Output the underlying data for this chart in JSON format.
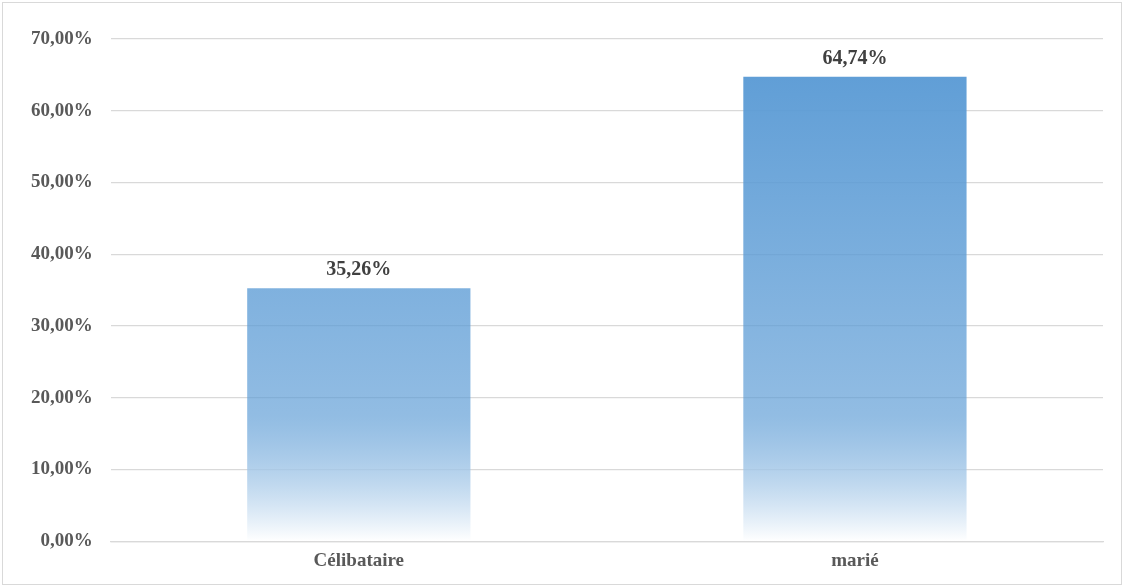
{
  "chart_data": {
    "type": "bar",
    "categories": [
      "Célibataire",
      "marié"
    ],
    "values": [
      35.26,
      64.74
    ],
    "color": "#5b9bd5",
    "value_labels": [
      "35,26%",
      "64,74%"
    ],
    "ylim": [
      0,
      70
    ],
    "yticks": [
      {
        "value": 0,
        "label": "0,00%"
      },
      {
        "value": 10,
        "label": "10,00%"
      },
      {
        "value": 20,
        "label": "20,00%"
      },
      {
        "value": 30,
        "label": "30,00%"
      },
      {
        "value": 40,
        "label": "40,00%"
      },
      {
        "value": 50,
        "label": "50,00%"
      },
      {
        "value": 60,
        "label": "60,00%"
      },
      {
        "value": 70,
        "label": "70,00%"
      }
    ],
    "grid": "y",
    "legend": false
  }
}
